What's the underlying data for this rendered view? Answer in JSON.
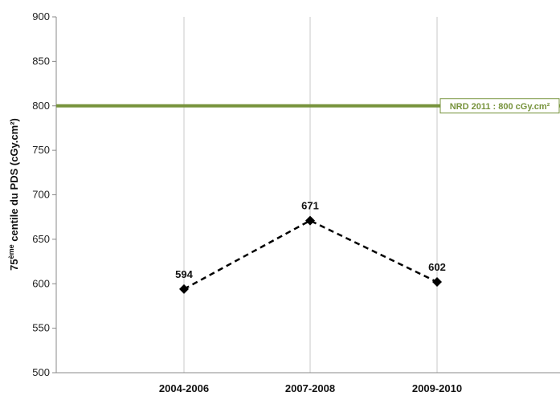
{
  "chart_data": {
    "type": "line",
    "title": "",
    "xlabel": "",
    "ylabel_main": "75",
    "ylabel_sup": "ème",
    "ylabel_rest": " centile du PDS (cGy.cm²)",
    "categories": [
      "2004-2006",
      "2007-2008",
      "2009-2010"
    ],
    "series": [
      {
        "values": [
          594,
          671,
          602
        ],
        "color": "#000000",
        "style": "dashed",
        "marker": "diamond"
      }
    ],
    "reference_line": {
      "value": 800,
      "label": "NRD 2011 : 800 cGy.cm²",
      "color": "#77933c"
    },
    "ylim": [
      500,
      900
    ],
    "yticks": [
      500,
      550,
      600,
      650,
      700,
      750,
      800,
      850,
      900
    ],
    "grid": "vertical"
  }
}
